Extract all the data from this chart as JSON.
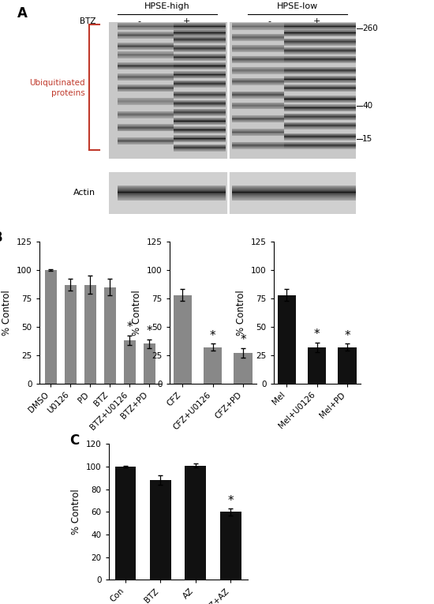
{
  "panel_A": {
    "label": "A",
    "hpse_high_label": "HPSE-high",
    "hpse_low_label": "HPSE-low",
    "btz_label": "BTZ",
    "actin_label": "Actin",
    "ubiq_label": "Ubiquitinated\nproteins",
    "mw_markers": [
      "260",
      "40",
      "15"
    ],
    "bracket_color": "#c0392b",
    "ubiq_color": "#c0392b"
  },
  "panel_B": {
    "label": "B",
    "subpanels": [
      {
        "categories": [
          "DMSO",
          "U0126",
          "PD",
          "BTZ",
          "BTZ+U0126",
          "BTZ+PD"
        ],
        "values": [
          100,
          87,
          87,
          85,
          38,
          35
        ],
        "errors": [
          1,
          5,
          8,
          7,
          4,
          4
        ],
        "bar_color": "#888888",
        "ylabel": "% Control",
        "ylim": [
          0,
          125
        ],
        "yticks": [
          0,
          25,
          50,
          75,
          100,
          125
        ],
        "significant": [
          false,
          false,
          false,
          false,
          true,
          true
        ]
      },
      {
        "categories": [
          "CFZ",
          "CFZ+U0126",
          "CFZ+PD"
        ],
        "values": [
          78,
          32,
          27
        ],
        "errors": [
          5,
          3,
          4
        ],
        "bar_color": "#888888",
        "ylabel": "% Control",
        "ylim": [
          0,
          125
        ],
        "yticks": [
          0,
          25,
          50,
          75,
          100,
          125
        ],
        "significant": [
          false,
          true,
          true
        ]
      },
      {
        "categories": [
          "Mel",
          "Mel+U0126",
          "Mel+PD"
        ],
        "values": [
          78,
          32,
          32
        ],
        "errors": [
          5,
          4,
          3
        ],
        "bar_color": "#111111",
        "ylabel": "% Control",
        "ylim": [
          0,
          125
        ],
        "yticks": [
          0,
          25,
          50,
          75,
          100,
          125
        ],
        "significant": [
          false,
          true,
          true
        ]
      }
    ]
  },
  "panel_C": {
    "label": "C",
    "categories": [
      "Con",
      "BTZ",
      "AZ",
      "BTZ+AZ"
    ],
    "values": [
      100,
      88,
      101,
      60
    ],
    "errors": [
      1,
      4,
      2,
      3
    ],
    "bar_color": "#111111",
    "ylabel": "% Control",
    "ylim": [
      0,
      120
    ],
    "yticks": [
      0,
      20,
      40,
      60,
      80,
      100,
      120
    ],
    "significant": [
      false,
      false,
      false,
      true
    ]
  },
  "background_color": "#ffffff",
  "tick_fontsize": 7.5,
  "axis_label_fontsize": 8.5,
  "star_fontsize": 11,
  "panel_label_fontsize": 12
}
